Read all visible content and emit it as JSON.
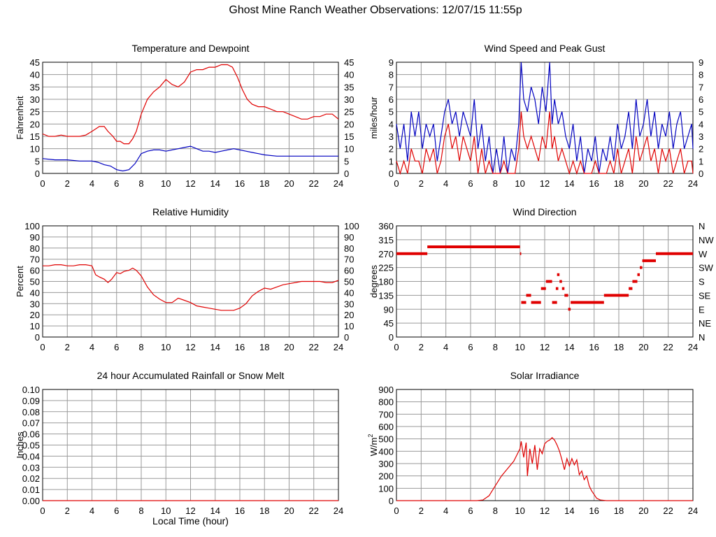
{
  "page": {
    "title": "Ghost Mine Ranch Weather Observations: 12/07/15 11:55p"
  },
  "charts": [
    {
      "id": "temp",
      "type": "line",
      "title": "Temperature and Dewpoint",
      "ylabel": "Fahrenheit",
      "xlabel": "",
      "xlim": [
        0,
        24
      ],
      "ylim": [
        0,
        45
      ],
      "x_ticks": [
        0,
        2,
        4,
        6,
        8,
        10,
        12,
        14,
        16,
        18,
        20,
        22,
        24
      ],
      "y_ticks": [
        "0",
        "5",
        "10",
        "15",
        "20",
        "25",
        "30",
        "35",
        "40",
        "45"
      ],
      "right_ticks": [
        "0",
        "5",
        "10",
        "15",
        "20",
        "25",
        "30",
        "35",
        "40",
        "45"
      ],
      "grid": true,
      "series": [
        {
          "color": "#e00000",
          "x": [
            0,
            0.5,
            1,
            1.5,
            2,
            2.5,
            3,
            3.5,
            4,
            4.3,
            4.6,
            5,
            5.3,
            5.7,
            6,
            6.3,
            6.6,
            7,
            7.3,
            7.6,
            8,
            8.5,
            9,
            9.5,
            10,
            10.5,
            11,
            11.5,
            12,
            12.5,
            13,
            13.5,
            14,
            14.5,
            15,
            15.4,
            15.8,
            16.2,
            16.6,
            17,
            17.5,
            18,
            18.5,
            19,
            19.5,
            20,
            20.5,
            21,
            21.5,
            22,
            22.5,
            23,
            23.5,
            24
          ],
          "y": [
            16,
            15,
            15,
            15.5,
            15,
            15,
            15,
            15.5,
            17,
            18,
            19,
            19,
            17,
            15,
            13,
            13,
            12,
            12,
            14,
            17,
            24,
            30,
            33,
            35,
            38,
            36,
            35,
            37,
            41,
            42,
            42,
            43,
            43,
            44,
            44,
            43,
            39,
            34,
            30,
            28,
            27,
            27,
            26,
            25,
            25,
            24,
            23,
            22,
            22,
            23,
            23,
            24,
            24,
            22
          ]
        },
        {
          "color": "#0000c0",
          "x": [
            0,
            1,
            2,
            3,
            4,
            4.5,
            5,
            5.5,
            6,
            6.5,
            7,
            7.5,
            8,
            8.5,
            9,
            9.5,
            10,
            10.5,
            11,
            11.5,
            12,
            12.5,
            13,
            13.5,
            14,
            14.5,
            15,
            15.5,
            16,
            16.5,
            17,
            17.5,
            18,
            19,
            20,
            21,
            22,
            23,
            24
          ],
          "y": [
            6,
            5.5,
            5.5,
            5,
            5,
            4.5,
            3.5,
            3,
            1.5,
            1,
            1.5,
            4,
            8,
            9,
            9.5,
            9.5,
            9,
            9.5,
            10,
            10.5,
            11,
            10,
            9,
            9,
            8.5,
            9,
            9.5,
            10,
            9.5,
            9,
            8.5,
            8,
            7.5,
            7,
            7,
            7,
            7,
            7,
            7
          ]
        }
      ]
    },
    {
      "id": "wind",
      "type": "line",
      "title": "Wind Speed and Peak Gust",
      "ylabel": "miles/hour",
      "xlabel": "",
      "xlim": [
        0,
        24
      ],
      "ylim": [
        0,
        9
      ],
      "x_ticks": [
        0,
        2,
        4,
        6,
        8,
        10,
        12,
        14,
        16,
        18,
        20,
        22,
        24
      ],
      "y_ticks": [
        "0",
        "1",
        "2",
        "3",
        "4",
        "5",
        "6",
        "7",
        "8",
        "9"
      ],
      "right_ticks": [
        "0",
        "1",
        "2",
        "3",
        "4",
        "5",
        "6",
        "7",
        "8",
        "9"
      ],
      "grid": true,
      "series": [
        {
          "color": "#0000c0",
          "x": [
            0,
            0.3,
            0.6,
            0.9,
            1.2,
            1.5,
            1.8,
            2.1,
            2.4,
            2.7,
            3,
            3.3,
            3.6,
            3.9,
            4.2,
            4.5,
            4.8,
            5.1,
            5.4,
            5.7,
            6,
            6.3,
            6.6,
            6.9,
            7.2,
            7.5,
            7.8,
            8.1,
            8.4,
            8.7,
            9,
            9.3,
            9.6,
            9.9,
            10.1,
            10.3,
            10.6,
            10.9,
            11.2,
            11.5,
            11.8,
            12.1,
            12.4,
            12.6,
            12.8,
            13.1,
            13.4,
            13.7,
            14,
            14.3,
            14.6,
            14.9,
            15.2,
            15.5,
            15.8,
            16.1,
            16.4,
            16.7,
            17,
            17.3,
            17.6,
            17.9,
            18.2,
            18.5,
            18.8,
            19.1,
            19.4,
            19.7,
            20,
            20.3,
            20.6,
            20.9,
            21.2,
            21.5,
            21.8,
            22.1,
            22.4,
            22.7,
            23,
            23.3,
            23.6,
            23.9,
            24
          ],
          "y": [
            4,
            2,
            4,
            1,
            5,
            3,
            5,
            2,
            4,
            3,
            4,
            1,
            3,
            5,
            6,
            4,
            5,
            3,
            5,
            4,
            3,
            6,
            2,
            4,
            1,
            3,
            0,
            2,
            0,
            3,
            0,
            2,
            1,
            4,
            9,
            6,
            5,
            7,
            6,
            4,
            7,
            5,
            9,
            4,
            6,
            4,
            5,
            3,
            2,
            4,
            1,
            3,
            0,
            2,
            1,
            3,
            0,
            2,
            1,
            3,
            1,
            4,
            2,
            3,
            5,
            2,
            6,
            3,
            4,
            6,
            3,
            5,
            2,
            4,
            3,
            5,
            2,
            4,
            5,
            2,
            3,
            4,
            2
          ]
        },
        {
          "color": "#e00000",
          "x": [
            0,
            0.3,
            0.6,
            0.9,
            1.2,
            1.5,
            1.8,
            2.1,
            2.4,
            2.7,
            3,
            3.3,
            3.6,
            3.9,
            4.2,
            4.5,
            4.8,
            5.1,
            5.4,
            5.7,
            6,
            6.3,
            6.6,
            6.9,
            7.2,
            7.5,
            7.8,
            8.1,
            8.4,
            8.7,
            9,
            9.3,
            9.6,
            9.9,
            10.1,
            10.3,
            10.6,
            10.9,
            11.2,
            11.5,
            11.8,
            12.1,
            12.4,
            12.6,
            12.8,
            13.1,
            13.4,
            13.7,
            14,
            14.3,
            14.6,
            14.9,
            15.2,
            15.5,
            15.8,
            16.1,
            16.4,
            16.7,
            17,
            17.3,
            17.6,
            17.9,
            18.2,
            18.5,
            18.8,
            19.1,
            19.4,
            19.7,
            20,
            20.3,
            20.6,
            20.9,
            21.2,
            21.5,
            21.8,
            22.1,
            22.4,
            22.7,
            23,
            23.3,
            23.6,
            23.9,
            24
          ],
          "y": [
            1,
            0,
            1,
            0,
            2,
            1,
            1,
            0,
            2,
            1,
            2,
            0,
            1,
            3,
            4,
            2,
            3,
            1,
            3,
            2,
            1,
            3,
            0,
            2,
            0,
            1,
            0,
            0,
            0,
            1,
            0,
            0,
            0,
            2,
            5,
            3,
            2,
            3,
            2,
            1,
            3,
            2,
            5,
            2,
            3,
            1,
            2,
            1,
            0,
            1,
            0,
            1,
            0,
            0,
            0,
            1,
            0,
            0,
            0,
            1,
            0,
            2,
            0,
            1,
            2,
            0,
            3,
            1,
            2,
            3,
            1,
            2,
            0,
            2,
            1,
            2,
            0,
            1,
            2,
            0,
            1,
            1,
            0
          ]
        }
      ]
    },
    {
      "id": "rh",
      "type": "line",
      "title": "Relative Humidity",
      "ylabel": "Percent",
      "xlabel": "",
      "xlim": [
        0,
        24
      ],
      "ylim": [
        0,
        100
      ],
      "x_ticks": [
        0,
        2,
        4,
        6,
        8,
        10,
        12,
        14,
        16,
        18,
        20,
        22,
        24
      ],
      "y_ticks": [
        "0",
        "10",
        "20",
        "30",
        "40",
        "50",
        "60",
        "70",
        "80",
        "90",
        "100"
      ],
      "right_ticks": [
        "0",
        "10",
        "20",
        "30",
        "40",
        "50",
        "60",
        "70",
        "80",
        "90",
        "100"
      ],
      "grid": true,
      "series": [
        {
          "color": "#e00000",
          "x": [
            0,
            0.5,
            1,
            1.5,
            2,
            2.5,
            3,
            3.5,
            4,
            4.3,
            4.6,
            5,
            5.3,
            5.6,
            6,
            6.3,
            6.6,
            7,
            7.3,
            7.6,
            8,
            8.5,
            9,
            9.5,
            10,
            10.5,
            11,
            11.5,
            12,
            12.5,
            13,
            13.5,
            14,
            14.5,
            15,
            15.5,
            16,
            16.5,
            17,
            17.5,
            18,
            18.5,
            19,
            19.5,
            20,
            20.5,
            21,
            21.5,
            22,
            22.5,
            23,
            23.5,
            24
          ],
          "y": [
            64,
            64,
            65,
            65,
            64,
            64,
            65,
            65,
            64,
            56,
            54,
            52,
            49,
            52,
            58,
            57,
            59,
            60,
            62,
            60,
            55,
            45,
            38,
            34,
            31,
            31,
            35,
            33,
            31,
            28,
            27,
            26,
            25,
            24,
            24,
            24,
            26,
            30,
            37,
            41,
            44,
            43,
            45,
            47,
            48,
            49,
            50,
            50,
            50,
            50,
            49,
            49,
            51
          ]
        }
      ]
    },
    {
      "id": "winddir",
      "type": "scatter",
      "title": "Wind Direction",
      "ylabel": "degrees",
      "xlabel": "",
      "xlim": [
        0,
        24
      ],
      "ylim": [
        0,
        360
      ],
      "x_ticks": [
        0,
        2,
        4,
        6,
        8,
        10,
        12,
        14,
        16,
        18,
        20,
        22,
        24
      ],
      "y_ticks": [
        "0",
        "45",
        "90",
        "135",
        "180",
        "225",
        "270",
        "315",
        "360"
      ],
      "right_ticks": [
        "N",
        "NE",
        "E",
        "SE",
        "S",
        "SW",
        "W",
        "NW",
        "N"
      ],
      "grid": true,
      "segments": [
        {
          "x": [
            0,
            2.5
          ],
          "y": 270
        },
        {
          "x": [
            2.5,
            10
          ],
          "y": 292
        },
        {
          "x": [
            10,
            10.1
          ],
          "y": 270
        },
        {
          "x": [
            10.1,
            10.5
          ],
          "y": 112
        },
        {
          "x": [
            10.5,
            10.9
          ],
          "y": 135
        },
        {
          "x": [
            10.9,
            11.7
          ],
          "y": 112
        },
        {
          "x": [
            11.7,
            12.1
          ],
          "y": 157
        },
        {
          "x": [
            12.1,
            12.6
          ],
          "y": 180
        },
        {
          "x": [
            12.6,
            13
          ],
          "y": 112
        },
        {
          "x": [
            13,
            13.2
          ],
          "y": 202
        },
        {
          "x": [
            12.9,
            13.1
          ],
          "y": 157
        },
        {
          "x": [
            13.2,
            13.4
          ],
          "y": 180
        },
        {
          "x": [
            13.4,
            13.6
          ],
          "y": 157
        },
        {
          "x": [
            13.6,
            13.9
          ],
          "y": 135
        },
        {
          "x": [
            13.9,
            14.1
          ],
          "y": 90
        },
        {
          "x": [
            14.1,
            16.8
          ],
          "y": 112
        },
        {
          "x": [
            16.8,
            18.8
          ],
          "y": 135
        },
        {
          "x": [
            18.8,
            19.1
          ],
          "y": 157
        },
        {
          "x": [
            19.1,
            19.5
          ],
          "y": 180
        },
        {
          "x": [
            19.5,
            19.7
          ],
          "y": 202
        },
        {
          "x": [
            19.7,
            19.9
          ],
          "y": 225
        },
        {
          "x": [
            19.9,
            21
          ],
          "y": 247
        },
        {
          "x": [
            21,
            24
          ],
          "y": 270
        }
      ]
    },
    {
      "id": "rain",
      "type": "line",
      "title": "24 hour Accumulated Rainfall or Snow Melt",
      "ylabel": "Inches",
      "xlabel": "Local Time (hour)",
      "xlim": [
        0,
        24
      ],
      "ylim": [
        0,
        0.1
      ],
      "x_ticks": [
        0,
        2,
        4,
        6,
        8,
        10,
        12,
        14,
        16,
        18,
        20,
        22,
        24
      ],
      "y_ticks": [
        "0.00",
        "0.01",
        "0.02",
        "0.03",
        "0.04",
        "0.05",
        "0.06",
        "0.07",
        "0.08",
        "0.09",
        "0.10"
      ],
      "right_ticks": [],
      "grid": true,
      "series": [
        {
          "color": "#e00000",
          "x": [
            0,
            24
          ],
          "y": [
            0,
            0
          ]
        }
      ]
    },
    {
      "id": "solar",
      "type": "line",
      "title": "Solar Irradiance",
      "ylabel": "W/m",
      "ylabel_sup": "2",
      "xlabel": "",
      "xlim": [
        0,
        24
      ],
      "ylim": [
        0,
        900
      ],
      "x_ticks": [
        0,
        2,
        4,
        6,
        8,
        10,
        12,
        14,
        16,
        18,
        20,
        22,
        24
      ],
      "y_ticks": [
        "0",
        "100",
        "200",
        "300",
        "400",
        "500",
        "600",
        "700",
        "800",
        "900"
      ],
      "right_ticks": [],
      "grid": true,
      "series": [
        {
          "color": "#e00000",
          "x": [
            0,
            6.5,
            7,
            7.5,
            8,
            8.5,
            9,
            9.5,
            9.8,
            10,
            10.1,
            10.3,
            10.5,
            10.6,
            10.8,
            11,
            11.2,
            11.4,
            11.6,
            11.8,
            12,
            12.2,
            12.4,
            12.6,
            12.8,
            13,
            13.2,
            13.4,
            13.6,
            13.8,
            14,
            14.2,
            14.4,
            14.6,
            14.8,
            15,
            15.2,
            15.4,
            15.6,
            15.8,
            16,
            16.2,
            16.5,
            17,
            18,
            20,
            22,
            24
          ],
          "y": [
            0,
            0,
            5,
            40,
            120,
            200,
            260,
            320,
            380,
            420,
            480,
            350,
            470,
            200,
            420,
            300,
            450,
            250,
            420,
            380,
            460,
            480,
            490,
            510,
            490,
            450,
            400,
            330,
            250,
            340,
            280,
            340,
            290,
            330,
            210,
            240,
            170,
            200,
            120,
            80,
            50,
            20,
            5,
            0,
            0,
            0,
            0,
            0
          ]
        }
      ]
    }
  ]
}
